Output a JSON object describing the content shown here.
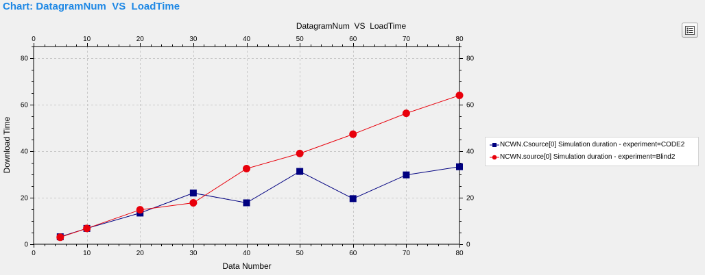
{
  "header": {
    "title": "Chart: DatagramNum  VS  LoadTime"
  },
  "menu_button": {
    "icon": "list-menu-icon"
  },
  "chart_data": {
    "type": "line",
    "title": "DatagramNum  VS  LoadTime",
    "xlabel": "Data Number",
    "ylabel": "Download Time",
    "xlim": [
      0,
      80
    ],
    "ylim": [
      0,
      85
    ],
    "xticks": [
      0,
      10,
      20,
      30,
      40,
      50,
      60,
      70,
      80
    ],
    "yticks": [
      0,
      20,
      40,
      60,
      80
    ],
    "grid": true,
    "legend_position": "right",
    "x": [
      5,
      10,
      20,
      30,
      40,
      50,
      60,
      70,
      80
    ],
    "series": [
      {
        "name": "NCWN.Csource[0] Simulation duration - experiment=CODE2",
        "marker": "square",
        "color": "#000080",
        "values": [
          3.2,
          6.8,
          13.4,
          22.0,
          17.8,
          31.3,
          19.6,
          29.8,
          33.3
        ]
      },
      {
        "name": "NCWN.source[0] Simulation duration - experiment=Blind2",
        "marker": "circle",
        "color": "#e8000b",
        "values": [
          3.0,
          6.8,
          14.8,
          17.8,
          32.5,
          39.0,
          47.3,
          56.3,
          64.0
        ]
      }
    ]
  }
}
